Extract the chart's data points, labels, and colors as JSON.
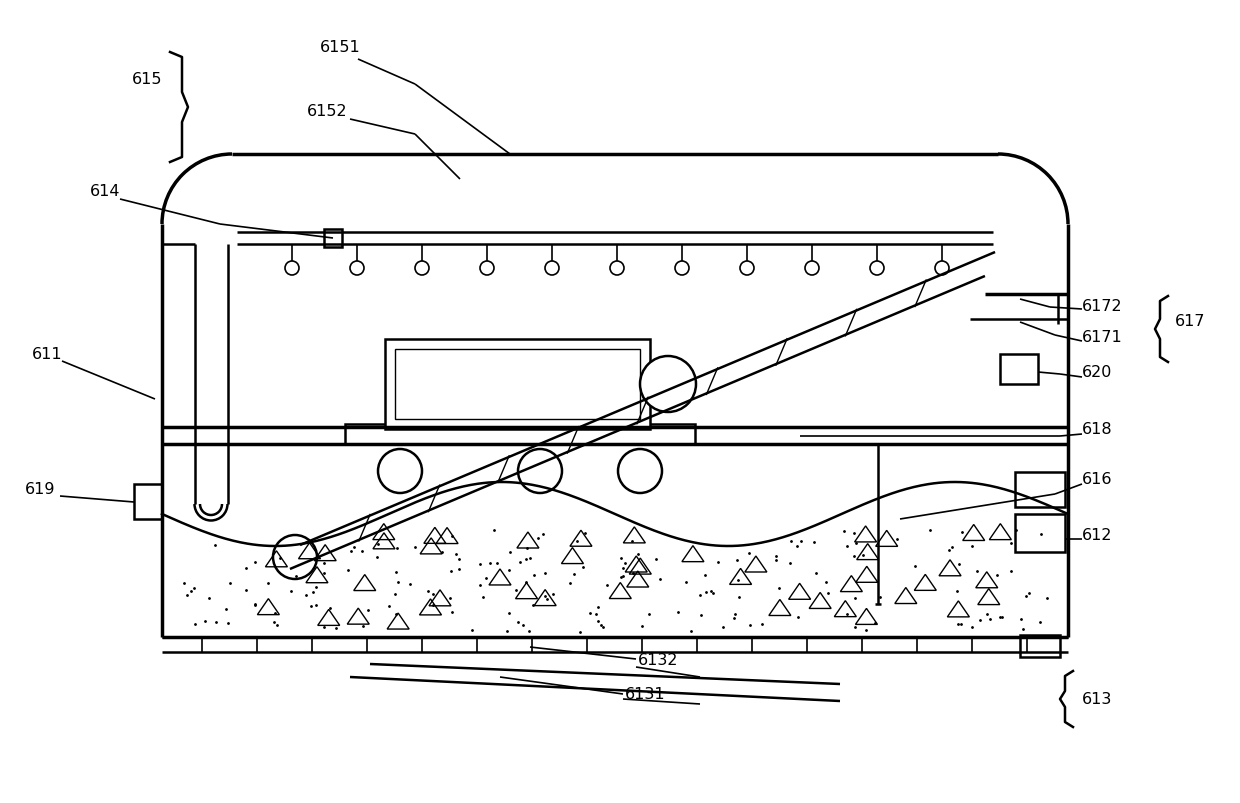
{
  "bg_color": "#ffffff",
  "line_color": "#000000",
  "fig_width": 12.4,
  "fig_height": 8.04
}
